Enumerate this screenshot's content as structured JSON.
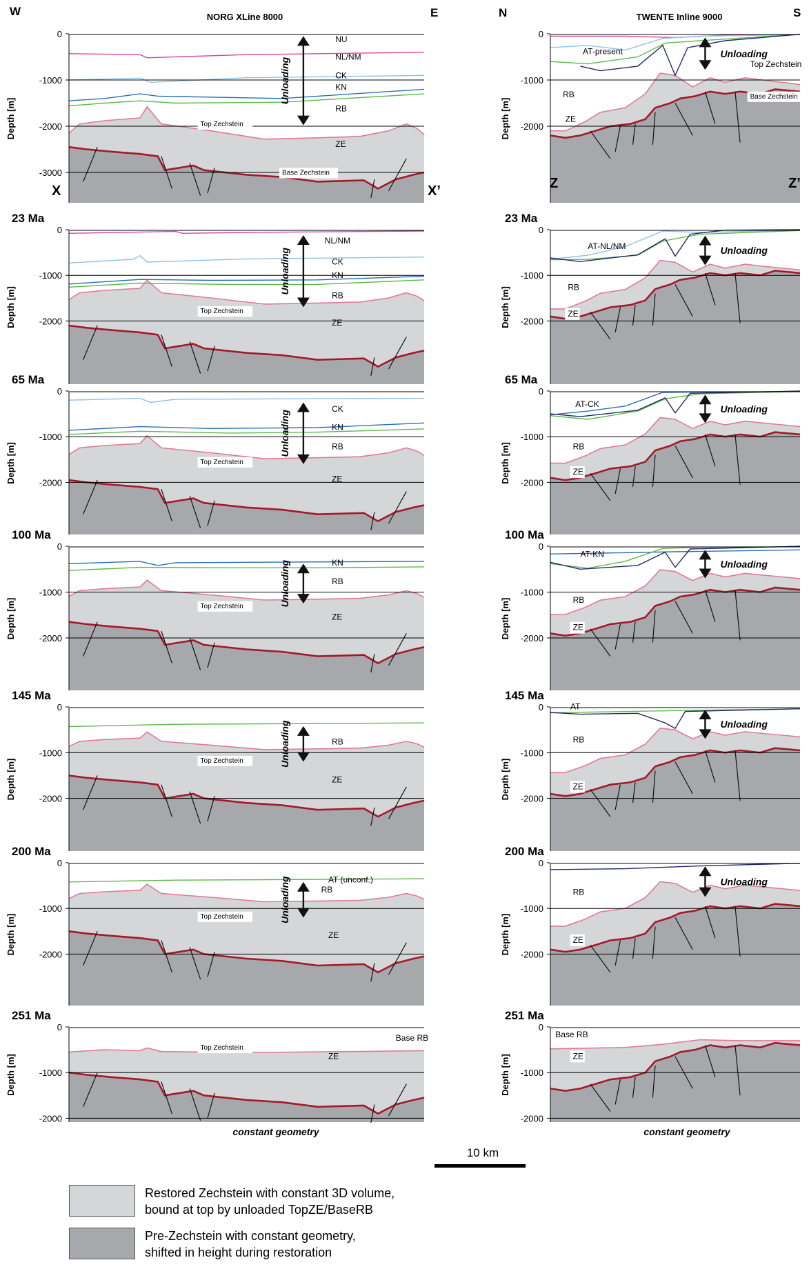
{
  "headers": {
    "west": "W",
    "east": "E",
    "north": "N",
    "south": "S",
    "left_title": "NORG XLine 8000",
    "right_title": "TWENTE Inline 9000",
    "x_left": "X",
    "x_right": "X’",
    "z_left": "Z",
    "z_right": "Z’"
  },
  "ylabel": "Depth [m]",
  "unloading_label": "Unloading",
  "footers": {
    "left": "constant geometry",
    "right": "constant geometry"
  },
  "scale_bar_label": "10 km",
  "colors": {
    "restored_zechstein": "#d5d6d8",
    "pre_zechstein": "#a7a8ab",
    "top_zechstein": "#e17a96",
    "base_zechstein": "#a3192b",
    "nu": "#d8459c",
    "nl_nm": "#8fc1e6",
    "ck": "#2a6fb8",
    "kn": "#5cb94a",
    "at": "#222a66"
  },
  "legend": [
    {
      "line1": "Restored Zechstein with constant 3D volume,",
      "line2": "bound at top by unloaded TopZE/BaseRB"
    },
    {
      "line1": "Pre-Zechstein with constant geometry,",
      "line2": "shifted in height during restoration"
    }
  ],
  "panels": [
    {
      "age": "",
      "left_ticks": [
        "0",
        "-1000",
        "-2000",
        "-3000"
      ],
      "right_ticks": [
        "0",
        "-1000",
        "-2000"
      ],
      "left_labels": [
        "NU",
        "NL/NM",
        "CK",
        "KN",
        "RB",
        "ZE",
        "Top Zechstein",
        "Base Zechstein"
      ],
      "right_labels": [
        "AT-present",
        "RB",
        "ZE",
        "Top Zechstein",
        "Base Zechstein"
      ]
    },
    {
      "age": "23 Ma",
      "left_ticks": [
        "0",
        "-1000",
        "-2000"
      ],
      "right_ticks": [
        "0",
        "-1000",
        "-2000"
      ],
      "left_labels": [
        "NL/NM",
        "CK",
        "KN",
        "RB",
        "ZE",
        "Top Zechstein"
      ],
      "right_labels": [
        "AT-NL/NM",
        "RB",
        "ZE"
      ]
    },
    {
      "age": "65 Ma",
      "left_ticks": [
        "0",
        "-1000",
        "-2000"
      ],
      "right_ticks": [
        "0",
        "-1000",
        "-2000"
      ],
      "left_labels": [
        "CK",
        "KN",
        "RB",
        "ZE",
        "Top Zechstein"
      ],
      "right_labels": [
        "AT-CK",
        "RB",
        "ZE"
      ]
    },
    {
      "age": "100 Ma",
      "left_ticks": [
        "0",
        "-1000",
        "-2000"
      ],
      "right_ticks": [
        "0",
        "-1000",
        "-2000"
      ],
      "left_labels": [
        "KN",
        "RB",
        "ZE",
        "Top Zechstein"
      ],
      "right_labels": [
        "AT-KN",
        "RB",
        "ZE"
      ]
    },
    {
      "age": "145 Ma",
      "left_ticks": [
        "0",
        "-1000",
        "-2000"
      ],
      "right_ticks": [
        "0",
        "-1000",
        "-2000"
      ],
      "left_labels": [
        "RB",
        "ZE",
        "Top Zechstein"
      ],
      "right_labels": [
        "AT",
        "RB",
        "ZE"
      ]
    },
    {
      "age": "200 Ma",
      "left_ticks": [
        "0",
        "-1000",
        "-2000"
      ],
      "right_ticks": [
        "0",
        "-1000",
        "-2000"
      ],
      "left_labels": [
        "AT (unconf.)",
        "RB",
        "ZE",
        "Top Zechstein"
      ],
      "right_labels": [
        "RB",
        "ZE"
      ]
    },
    {
      "age": "251 Ma",
      "left_ticks": [
        "0",
        "-1000",
        "-2000"
      ],
      "right_ticks": [
        "0",
        "-1000",
        "-2000"
      ],
      "left_labels": [
        "Base RB",
        "ZE",
        "Top Zechstein"
      ],
      "right_labels": [
        "Base RB",
        "ZE"
      ]
    }
  ]
}
